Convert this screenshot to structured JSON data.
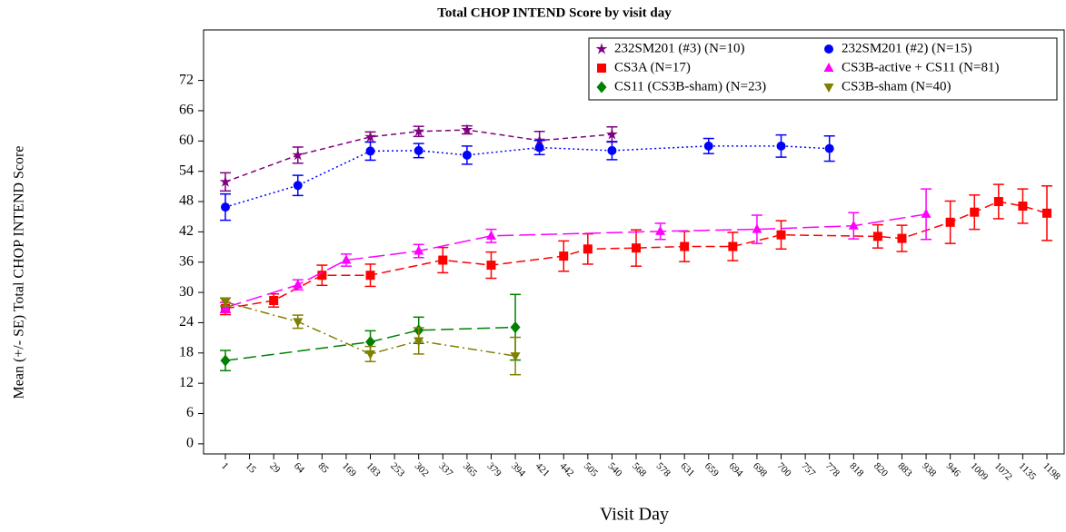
{
  "chart_data": {
    "type": "line",
    "title": "Total CHOP INTEND Score by visit day",
    "x_label": "Visit Day",
    "y_label": "Mean (+/- SE) Total CHOP INTEND Score",
    "categories": [
      "1",
      "15",
      "29",
      "64",
      "85",
      "169",
      "183",
      "253",
      "302",
      "337",
      "365",
      "379",
      "394",
      "421",
      "442",
      "505",
      "540",
      "568",
      "578",
      "631",
      "659",
      "694",
      "698",
      "700",
      "757",
      "778",
      "818",
      "820",
      "883",
      "938",
      "946",
      "1009",
      "1072",
      "1135",
      "1198"
    ],
    "ylim": [
      -2,
      82
    ],
    "yticks": [
      0,
      6,
      12,
      18,
      24,
      30,
      36,
      42,
      48,
      54,
      60,
      66,
      72
    ],
    "legend": "top-right",
    "series": [
      {
        "name": "232SM201 (#3) (N=10)",
        "color": "#800080",
        "marker": "star",
        "dash": "6,4",
        "x": [
          "1",
          "64",
          "183",
          "302",
          "365",
          "421",
          "540"
        ],
        "values": [
          51.9,
          57.2,
          60.8,
          61.9,
          62.2,
          60.1,
          61.3
        ],
        "errors": [
          1.8,
          1.6,
          1,
          1,
          0.8,
          1.8,
          1.5
        ]
      },
      {
        "name": "232SM201 (#2) (N=15)",
        "color": "#0000ff",
        "marker": "circle",
        "dash": "2,3",
        "x": [
          "1",
          "64",
          "183",
          "302",
          "365",
          "421",
          "540",
          "659",
          "700",
          "778"
        ],
        "values": [
          46.9,
          51.2,
          58,
          58.1,
          57.2,
          58.7,
          58.1,
          59,
          59,
          58.5
        ],
        "errors": [
          2.6,
          2,
          1.8,
          1.4,
          1.8,
          1.4,
          1.8,
          1.5,
          2.2,
          2.5
        ]
      },
      {
        "name": "CS3A (N=17)",
        "color": "#ff0000",
        "marker": "square",
        "dash": "10,5",
        "x": [
          "1",
          "29",
          "85",
          "183",
          "337",
          "379",
          "442",
          "505",
          "568",
          "631",
          "694",
          "700",
          "820",
          "883",
          "946",
          "1009",
          "1072",
          "1135",
          "1198"
        ],
        "values": [
          26.8,
          28.4,
          33.4,
          33.4,
          36.4,
          35.4,
          37.2,
          38.6,
          38.8,
          39.1,
          39.1,
          41.4,
          41.1,
          40.7,
          43.9,
          45.9,
          48,
          47.1,
          45.7
        ],
        "errors": [
          1.2,
          1.3,
          2,
          2.2,
          2.5,
          2.6,
          3,
          3,
          3.6,
          3,
          2.8,
          2.8,
          2.3,
          2.6,
          4.2,
          3.4,
          3.4,
          3.4,
          5.4
        ]
      },
      {
        "name": "CS3B-active + CS11 (N=81)",
        "color": "#ff00ff",
        "marker": "triangle",
        "dash": "18,6",
        "x": [
          "1",
          "64",
          "169",
          "302",
          "379",
          "578",
          "698",
          "818",
          "938"
        ],
        "values": [
          27,
          31.5,
          36.4,
          38.2,
          41.2,
          42.1,
          42.5,
          43.2,
          45.5
        ],
        "errors": [
          1,
          1,
          1.2,
          1.3,
          1.3,
          1.6,
          2.8,
          2.6,
          5
        ]
      },
      {
        "name": "CS11 (CS3B-sham) (N=23)",
        "color": "#008000",
        "marker": "diamond",
        "dash": "14,6",
        "x": [
          "1",
          "183",
          "302",
          "394"
        ],
        "values": [
          16.5,
          20.2,
          22.5,
          23.1
        ],
        "errors": [
          2,
          2.2,
          2.6,
          6.5
        ]
      },
      {
        "name": "CS3B-sham (N=40)",
        "color": "#808000",
        "marker": "triangle-down",
        "dash": "10,4,2,4",
        "x": [
          "1",
          "64",
          "183",
          "302",
          "394"
        ],
        "values": [
          28.1,
          24.2,
          17.8,
          20.4,
          17.4
        ],
        "errors": [
          0.8,
          1.3,
          1.5,
          2.6,
          3.7
        ]
      }
    ]
  }
}
